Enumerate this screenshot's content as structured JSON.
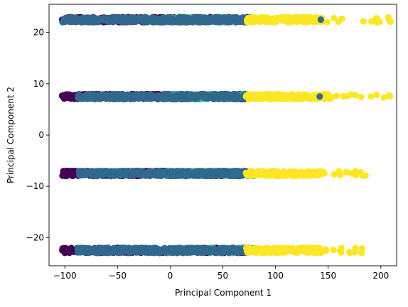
{
  "chart_data": {
    "type": "scatter",
    "title": "",
    "xlabel": "Principal Component 1",
    "ylabel": "Principal Component 2",
    "xlim": [
      -115,
      215
    ],
    "ylim": [
      -25.5,
      25.5
    ],
    "xticks": [
      -100,
      -50,
      0,
      50,
      100,
      150,
      200
    ],
    "yticks": [
      -20,
      -10,
      0,
      10,
      20
    ],
    "grid": false,
    "legend": "none",
    "colors": {
      "class_0": "#440154",
      "class_1": "#31688e",
      "class_2": "#35b779",
      "class_3": "#fde725"
    },
    "bands": [
      {
        "y": 22.5,
        "clusters": [
          {
            "color_key": "class_0",
            "x_range": [
              -103,
              75
            ]
          },
          {
            "color_key": "class_2",
            "x_range": [
              -5,
              78
            ]
          },
          {
            "color_key": "class_1",
            "x_range": [
              -103,
              75
            ]
          },
          {
            "color_key": "class_3",
            "x_range": [
              73,
              145
            ]
          },
          {
            "color_key": "class_3",
            "x_range": [
              145,
              210
            ]
          }
        ],
        "extra_points": [
          {
            "x": 143,
            "color_key": "class_1"
          }
        ]
      },
      {
        "y": 7.5,
        "clusters": [
          {
            "color_key": "class_0",
            "x_range": [
              -103,
              75
            ]
          },
          {
            "color_key": "class_2",
            "x_range": [
              -5,
              80
            ]
          },
          {
            "color_key": "class_1",
            "x_range": [
              -88,
              75
            ]
          },
          {
            "color_key": "class_3",
            "x_range": [
              72,
              150
            ]
          },
          {
            "color_key": "class_3",
            "x_range": [
              150,
              210
            ]
          }
        ],
        "extra_points": [
          {
            "x": 142,
            "color_key": "class_1"
          }
        ]
      },
      {
        "y": -7.5,
        "clusters": [
          {
            "color_key": "class_0",
            "x_range": [
              -103,
              75
            ]
          },
          {
            "color_key": "class_2",
            "x_range": [
              -5,
              80
            ]
          },
          {
            "color_key": "class_1",
            "x_range": [
              -88,
              75
            ]
          },
          {
            "color_key": "class_3",
            "x_range": [
              72,
              145
            ]
          },
          {
            "color_key": "class_3",
            "x_range": [
              145,
              190
            ]
          }
        ],
        "extra_points": []
      },
      {
        "y": -22.5,
        "clusters": [
          {
            "color_key": "class_0",
            "x_range": [
              -103,
              75
            ]
          },
          {
            "color_key": "class_2",
            "x_range": [
              -5,
              80
            ]
          },
          {
            "color_key": "class_1",
            "x_range": [
              -88,
              75
            ]
          },
          {
            "color_key": "class_3",
            "x_range": [
              72,
              145
            ]
          },
          {
            "color_key": "class_3",
            "x_range": [
              145,
              190
            ]
          }
        ],
        "extra_points": []
      }
    ]
  }
}
